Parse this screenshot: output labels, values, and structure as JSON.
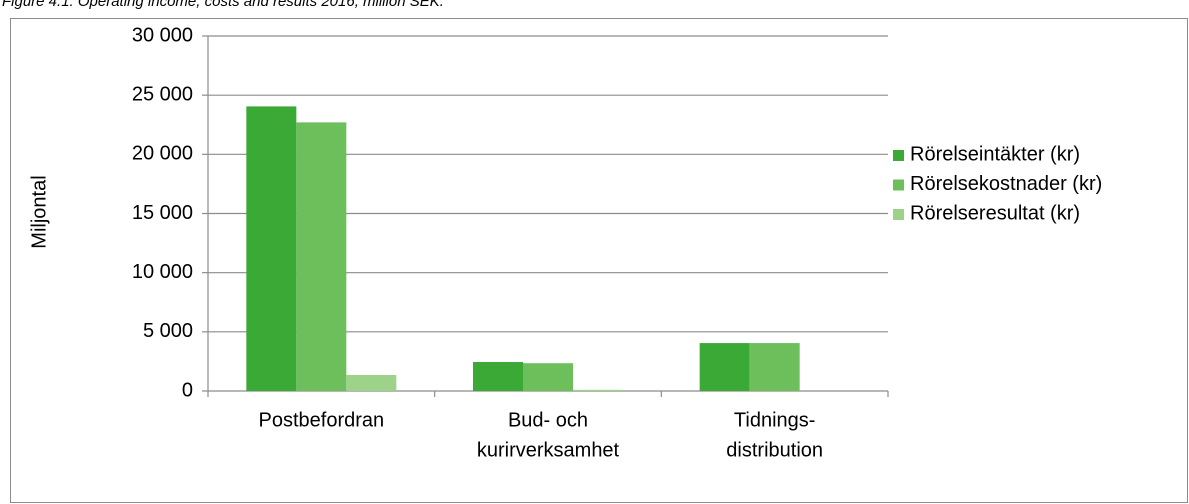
{
  "chart_data": {
    "type": "bar",
    "title": "Figure 4.1: Operating income, costs and results 2016, million SEK.",
    "ylabel": "Miljontal",
    "categories": [
      [
        "Postbefordran"
      ],
      [
        "Bud- och",
        "kurirverksamhet"
      ],
      [
        "Tidnings-",
        "distribution"
      ]
    ],
    "series": [
      {
        "name": "Rörelseintäkter (kr)",
        "color": "#3aa935",
        "values": [
          24050,
          2450,
          4050
        ]
      },
      {
        "name": "Rörelsekostnader (kr)",
        "color": "#6cbf5b",
        "values": [
          22700,
          2350,
          4050
        ]
      },
      {
        "name": "Rörelseresultat (kr)",
        "color": "#9dd28a",
        "values": [
          1350,
          100,
          0
        ]
      }
    ],
    "ylim": [
      0,
      30000
    ],
    "yticks": [
      {
        "value": 0,
        "label": "0"
      },
      {
        "value": 5000,
        "label": "5 000"
      },
      {
        "value": 10000,
        "label": "10 000"
      },
      {
        "value": 15000,
        "label": "15 000"
      },
      {
        "value": 20000,
        "label": "20 000"
      },
      {
        "value": 25000,
        "label": "25 000"
      },
      {
        "value": 30000,
        "label": "30 000"
      }
    ],
    "grid": true,
    "legend": "right"
  }
}
